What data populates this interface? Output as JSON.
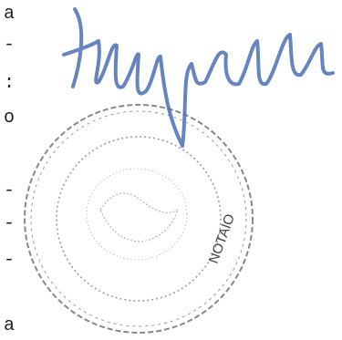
{
  "left_margin": [
    "a",
    "-",
    ":",
    "o",
    "-",
    "-",
    "-",
    "a"
  ],
  "stamp": {
    "text": "NOTAIO"
  }
}
